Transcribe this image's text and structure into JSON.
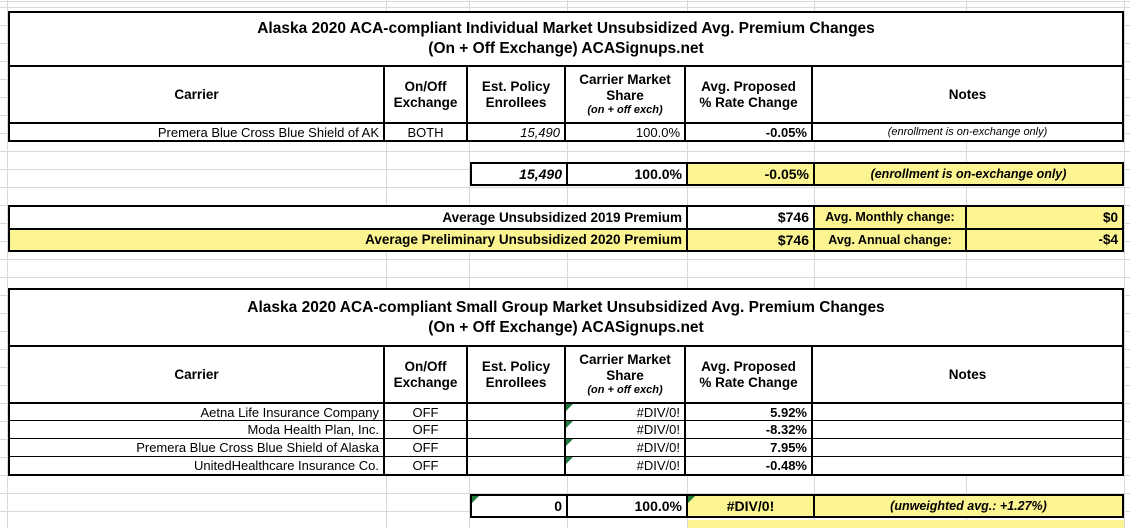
{
  "colors": {
    "highlight_yellow": "#FBF491",
    "gridline_gray": "#D9D9D9",
    "border_black": "#000000",
    "error_indicator_green": "#1F7A3D"
  },
  "icons": {
    "error_indicator_triangle": "green top-left corner triangle (spreadsheet error indicator)"
  },
  "headers": {
    "carrier": "Carrier",
    "exchange": "On/Off\nExchange",
    "enrollees": "Est. Policy\nEnrollees",
    "share_main": "Carrier Market\nShare",
    "share_sub": "(on + off exch)",
    "rate": "Avg. Proposed\n% Rate Change",
    "notes": "Notes"
  },
  "table1": {
    "title_line1": "Alaska 2020 ACA-compliant Individual Market Unsubsidized Avg. Premium Changes",
    "title_line2": "(On + Off Exchange) ACASignups.net",
    "rows": [
      {
        "carrier": "Premera Blue Cross Blue Shield of AK",
        "exchange": "BOTH",
        "enrollees": "15,490",
        "share": "100.0%",
        "rate": "-0.05%",
        "notes": "(enrollment is on-exchange only)"
      }
    ],
    "totals": {
      "enrollees": "15,490",
      "share": "100.0%",
      "rate": "-0.05%",
      "notes": "(enrollment is on-exchange only)"
    }
  },
  "summary": {
    "row1": {
      "label": "Average Unsubsidized 2019 Premium",
      "value": "$746",
      "change_label": "Avg. Monthly change:",
      "change_value": "$0"
    },
    "row2": {
      "label": "Average Preliminary Unsubsidized 2020 Premium",
      "value": "$746",
      "change_label": "Avg. Annual change:",
      "change_value": "-$4"
    }
  },
  "table2": {
    "title_line1": "Alaska 2020 ACA-compliant Small Group Market Unsubsidized Avg. Premium Changes",
    "title_line2": "(On + Off Exchange) ACASignups.net",
    "rows": [
      {
        "carrier": "Aetna Life Insurance Company",
        "exchange": "OFF",
        "enrollees": "",
        "share": "#DIV/0!",
        "rate": "5.92%",
        "notes": ""
      },
      {
        "carrier": "Moda Health Plan, Inc.",
        "exchange": "OFF",
        "enrollees": "",
        "share": "#DIV/0!",
        "rate": "-8.32%",
        "notes": ""
      },
      {
        "carrier": "Premera Blue Cross Blue Shield of Alaska",
        "exchange": "OFF",
        "enrollees": "",
        "share": "#DIV/0!",
        "rate": "7.95%",
        "notes": ""
      },
      {
        "carrier": "UnitedHealthcare Insurance Co.",
        "exchange": "OFF",
        "enrollees": "",
        "share": "#DIV/0!",
        "rate": "-0.48%",
        "notes": ""
      }
    ],
    "totals": {
      "enrollees": "0",
      "share": "100.0%",
      "rate": "#DIV/0!",
      "notes": "(unweighted avg.: +1.27%)"
    }
  }
}
